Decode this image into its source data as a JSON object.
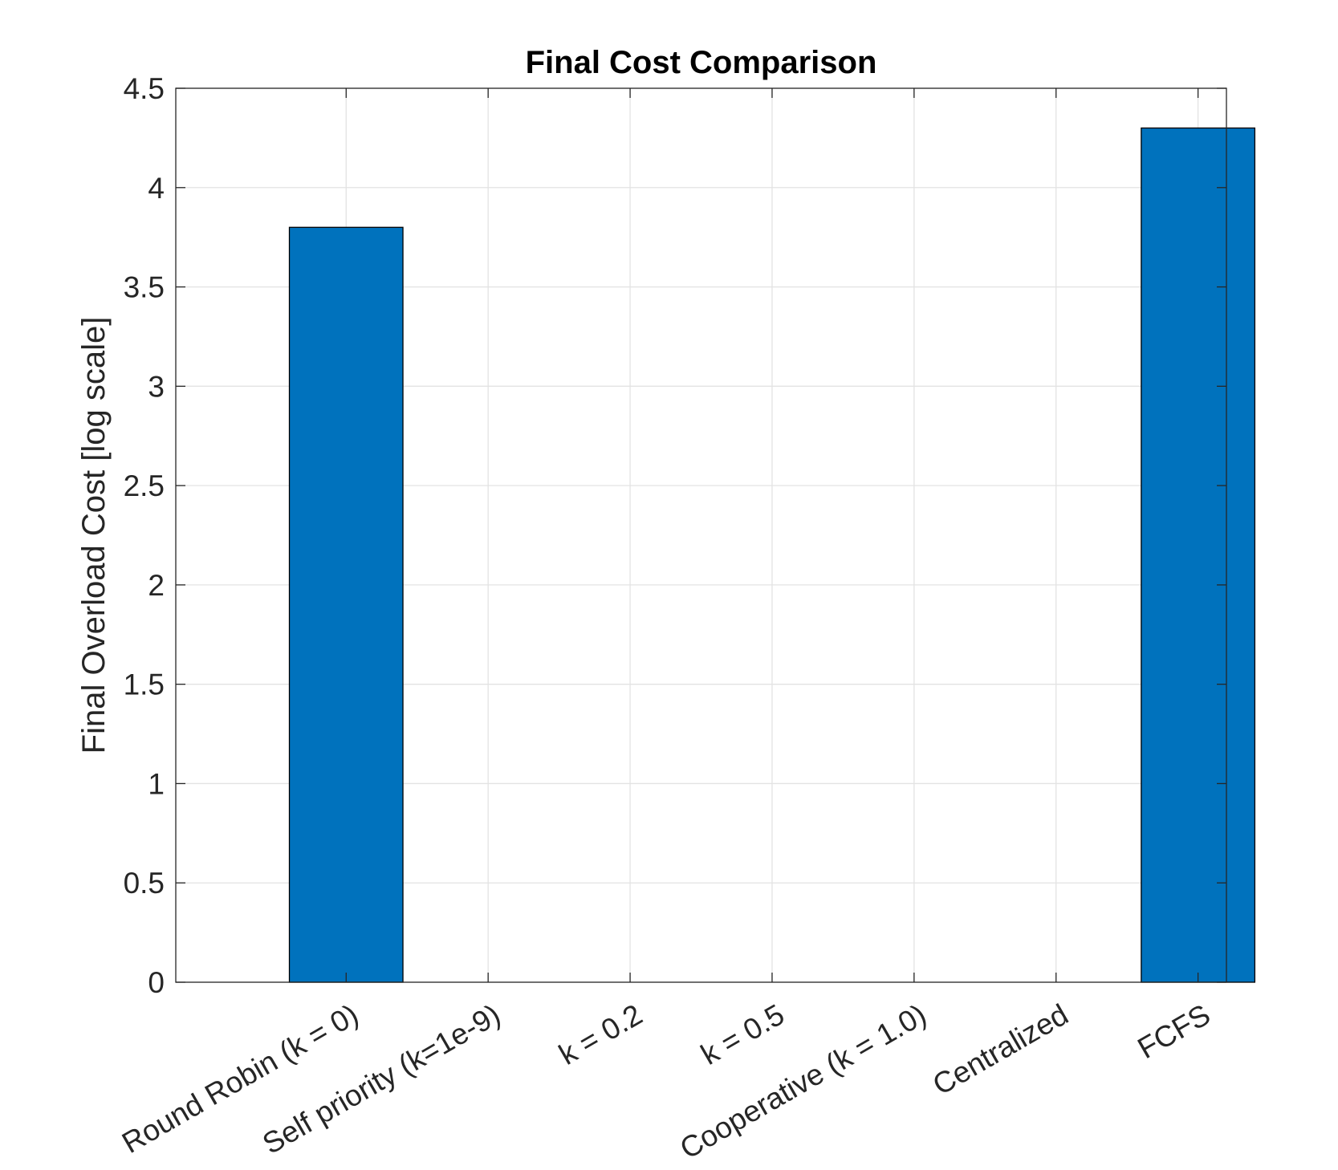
{
  "chart_data": {
    "type": "bar",
    "title": "Final Cost Comparison",
    "xlabel": "",
    "ylabel": "Final Overload Cost [log scale]",
    "categories": [
      "Round Robin (k = 0)",
      "Self priority (k=1e-9)",
      "k = 0.2",
      "k = 0.5",
      "Cooperative (k = 1.0)",
      "Centralized",
      "FCFS"
    ],
    "values": [
      3.8,
      0,
      0,
      0,
      0,
      0,
      4.3
    ],
    "ylim": [
      0,
      4.5
    ],
    "yticks": [
      0,
      0.5,
      1,
      1.5,
      2,
      2.5,
      3,
      3.5,
      4,
      4.5
    ],
    "ytick_labels": [
      "0",
      "0.5",
      "1",
      "1.5",
      "2",
      "2.5",
      "3",
      "3.5",
      "4",
      "4.5"
    ],
    "xlim": [
      -0.2,
      7.2
    ],
    "grid": true,
    "bar_color": "#0072bd"
  }
}
